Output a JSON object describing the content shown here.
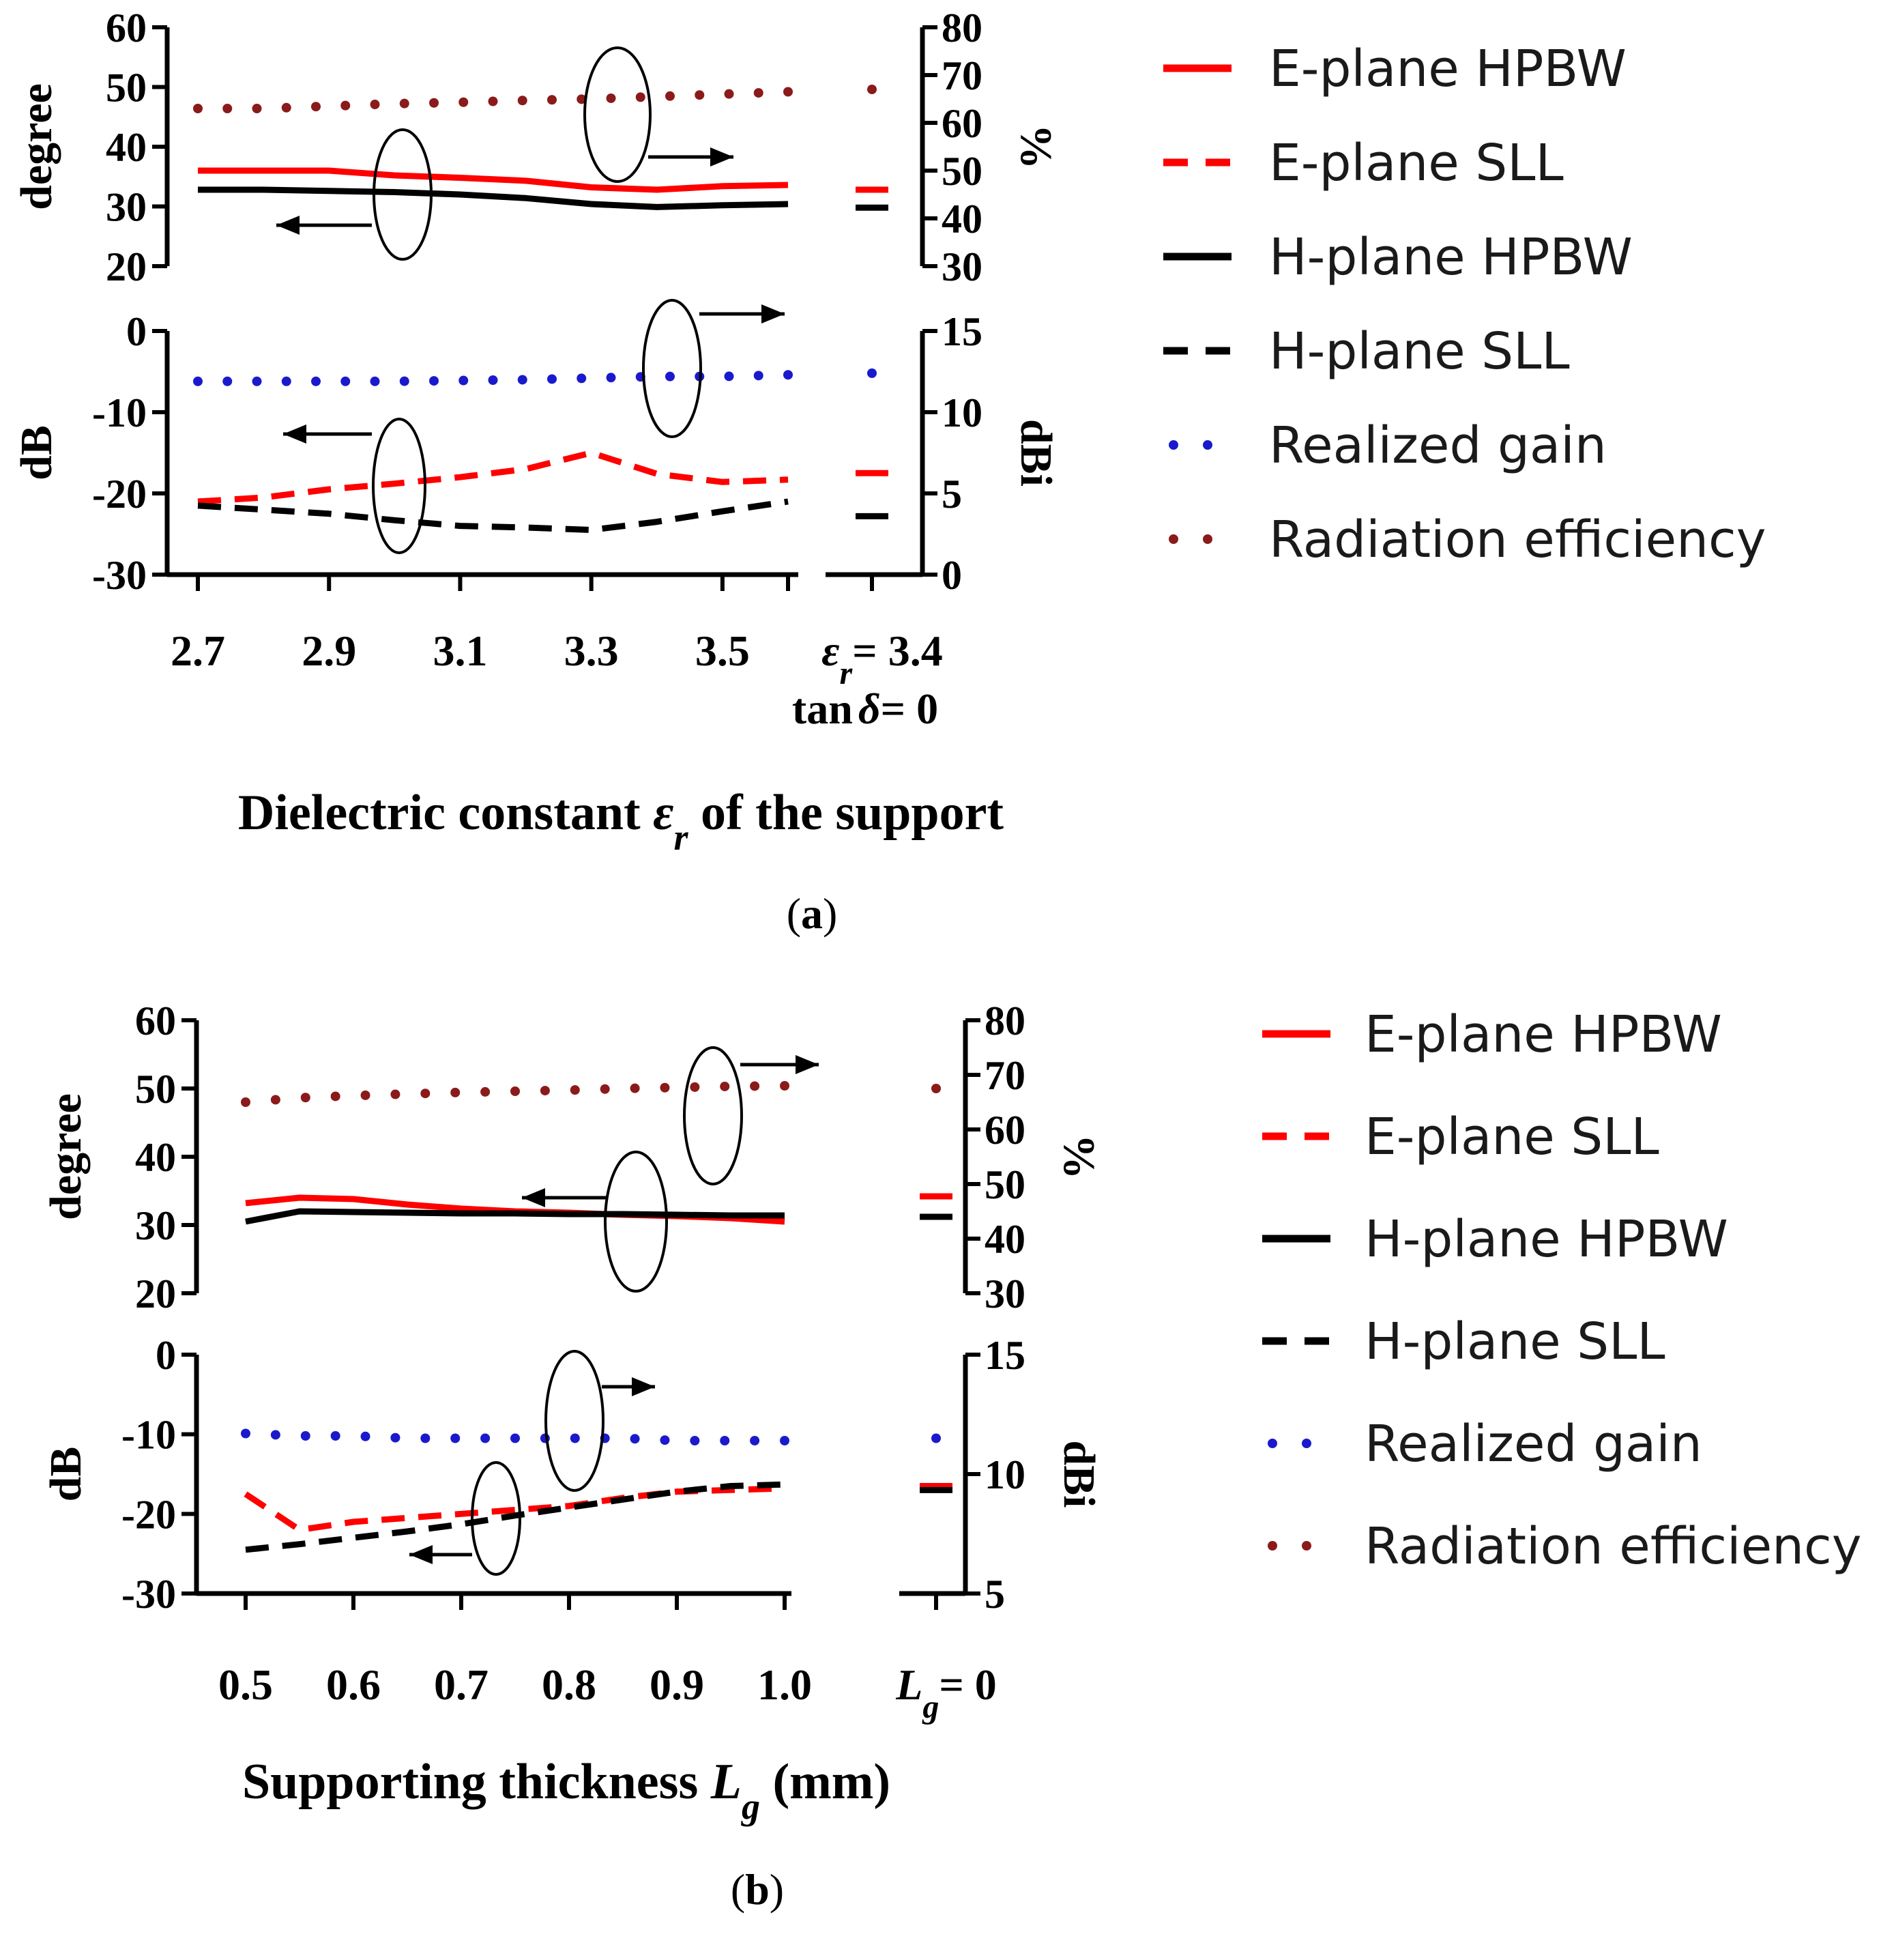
{
  "colors": {
    "e_hpbw": "#ff0000",
    "e_sll": "#ff0000",
    "h_hpbw": "#000000",
    "h_sll": "#000000",
    "gain": "#1a1acc",
    "eff": "#8b1a1a"
  },
  "chart_data": [
    {
      "id": "a",
      "type": "line",
      "caption": "a",
      "xtitle_before": "Dielectric constant ",
      "xtitle_symbol": "ε",
      "xtitle_sub": "r",
      "xtitle_after": " of the support",
      "categories": [
        "2.7",
        "2.9",
        "3.1",
        "3.3",
        "3.5"
      ],
      "x": [
        2.7,
        2.8,
        2.9,
        3.0,
        3.1,
        3.2,
        3.3,
        3.4,
        3.5,
        3.6
      ],
      "xlim": [
        2.7,
        3.6
      ],
      "extra_label_line1_symbol": "ε",
      "extra_label_line1_sub": "r",
      "extra_label_line1_rest": "= 3.4",
      "extra_label_line2_pre": "tan",
      "extra_label_line2_symbol": "δ",
      "extra_label_line2_rest": "= 0",
      "top": {
        "ylabel_left": "degree",
        "ylabel_right": "%",
        "ylim_left": [
          20,
          60
        ],
        "ylim_right": [
          30,
          80
        ],
        "yticks_left": [
          "20",
          "30",
          "40",
          "50",
          "60"
        ],
        "yticks_right": [
          "30",
          "40",
          "50",
          "60",
          "70",
          "80"
        ]
      },
      "bottom": {
        "ylabel_left": "dB",
        "ylabel_right": "dBi",
        "ylim_left": [
          -30,
          0
        ],
        "ylim_right": [
          0,
          15
        ],
        "yticks_left": [
          "-30",
          "-20",
          "-10",
          "0"
        ],
        "yticks_right": [
          "0",
          "5",
          "10",
          "15"
        ]
      },
      "series": [
        {
          "name": "E-plane HPBW",
          "key": "e_hpbw",
          "style": "solid",
          "panel": "top",
          "axis": "left",
          "values": [
            36.0,
            36.0,
            36.0,
            35.2,
            34.8,
            34.3,
            33.2,
            32.8,
            33.4,
            33.6
          ],
          "extra": 32.8
        },
        {
          "name": "E-plane SLL",
          "key": "e_sll",
          "style": "dash",
          "panel": "bottom",
          "axis": "left",
          "values": [
            -21.0,
            -20.5,
            -19.5,
            -18.8,
            -18.0,
            -17.0,
            -15.0,
            -17.6,
            -18.6,
            -18.3
          ],
          "extra": -17.5
        },
        {
          "name": "H-plane HPBW",
          "key": "h_hpbw",
          "style": "solid",
          "panel": "top",
          "axis": "left",
          "values": [
            32.8,
            32.8,
            32.6,
            32.4,
            32.0,
            31.4,
            30.4,
            29.9,
            30.2,
            30.4
          ],
          "extra": 29.8
        },
        {
          "name": "H-plane SLL",
          "key": "h_sll",
          "style": "dash",
          "panel": "bottom",
          "axis": "left",
          "values": [
            -21.5,
            -22.0,
            -22.5,
            -23.3,
            -24.0,
            -24.2,
            -24.5,
            -23.5,
            -22.2,
            -21.0
          ],
          "extra": -22.8
        },
        {
          "name": "Realized gain",
          "key": "gain",
          "style": "dot",
          "panel": "bottom",
          "axis": "right",
          "values": [
            11.9,
            11.9,
            11.9,
            11.9,
            11.95,
            12.0,
            12.1,
            12.2,
            12.2,
            12.3
          ],
          "extra": 12.4
        },
        {
          "name": "Radiation efficiency",
          "key": "eff",
          "style": "dot",
          "panel": "top",
          "axis": "right",
          "values": [
            63.0,
            63.0,
            63.5,
            64.0,
            64.3,
            64.7,
            65.0,
            65.5,
            66.0,
            66.5
          ],
          "extra": 67.0
        }
      ]
    },
    {
      "id": "b",
      "type": "line",
      "caption": "b",
      "xtitle_before": "Supporting thickness ",
      "xtitle_symbol": "L",
      "xtitle_sub": "g",
      "xtitle_after": " (mm)",
      "categories": [
        "0.5",
        "0.6",
        "0.7",
        "0.8",
        "0.9",
        "1.0"
      ],
      "x": [
        0.5,
        0.55,
        0.6,
        0.65,
        0.7,
        0.75,
        0.8,
        0.85,
        0.9,
        0.95,
        1.0
      ],
      "xlim": [
        0.5,
        1.0
      ],
      "extra_label_line1_symbol": "L",
      "extra_label_line1_sub": "g",
      "extra_label_line1_rest": "= 0",
      "top": {
        "ylabel_left": "degree",
        "ylabel_right": "%",
        "ylim_left": [
          20,
          60
        ],
        "ylim_right": [
          30,
          80
        ],
        "yticks_left": [
          "20",
          "30",
          "40",
          "50",
          "60"
        ],
        "yticks_right": [
          "30",
          "40",
          "50",
          "60",
          "70",
          "80"
        ]
      },
      "bottom": {
        "ylabel_left": "dB",
        "ylabel_right": "dBi",
        "ylim_left": [
          -30,
          0
        ],
        "ylim_right": [
          5,
          15
        ],
        "yticks_left": [
          "-30",
          "-20",
          "-10",
          "0"
        ],
        "yticks_right": [
          "5",
          "10",
          "15"
        ]
      },
      "series": [
        {
          "name": "E-plane HPBW",
          "key": "e_hpbw",
          "style": "solid",
          "panel": "top",
          "axis": "left",
          "values": [
            33.2,
            34.0,
            33.8,
            33.0,
            32.4,
            32.0,
            31.8,
            31.5,
            31.3,
            31.0,
            30.5
          ],
          "extra": 34.2
        },
        {
          "name": "E-plane SLL",
          "key": "e_sll",
          "style": "dash",
          "panel": "bottom",
          "axis": "left",
          "values": [
            -17.5,
            -22.0,
            -21.0,
            -20.5,
            -20.0,
            -19.5,
            -19.0,
            -18.0,
            -17.2,
            -17.0,
            -16.8
          ],
          "extra": -16.5
        },
        {
          "name": "H-plane HPBW",
          "key": "h_hpbw",
          "style": "solid",
          "panel": "top",
          "axis": "left",
          "values": [
            30.5,
            32.0,
            31.9,
            31.8,
            31.7,
            31.7,
            31.6,
            31.6,
            31.5,
            31.4,
            31.4
          ],
          "extra": 31.2
        },
        {
          "name": "H-plane SLL",
          "key": "h_sll",
          "style": "dash",
          "panel": "bottom",
          "axis": "left",
          "values": [
            -24.5,
            -23.8,
            -23.0,
            -22.2,
            -21.3,
            -20.2,
            -19.2,
            -18.2,
            -17.2,
            -16.5,
            -16.3
          ],
          "extra": -17.0
        },
        {
          "name": "Realized gain",
          "key": "gain",
          "style": "dot",
          "panel": "bottom",
          "axis": "right",
          "values": [
            11.7,
            11.6,
            11.6,
            11.5,
            11.5,
            11.5,
            11.5,
            11.5,
            11.4,
            11.4,
            11.4
          ],
          "extra": 11.5
        },
        {
          "name": "Radiation efficiency",
          "key": "eff",
          "style": "dot",
          "panel": "top",
          "axis": "right",
          "values": [
            65.0,
            65.8,
            66.2,
            66.5,
            66.8,
            67.0,
            67.2,
            67.5,
            67.7,
            67.9,
            68.0
          ],
          "extra": 67.5
        }
      ]
    }
  ]
}
